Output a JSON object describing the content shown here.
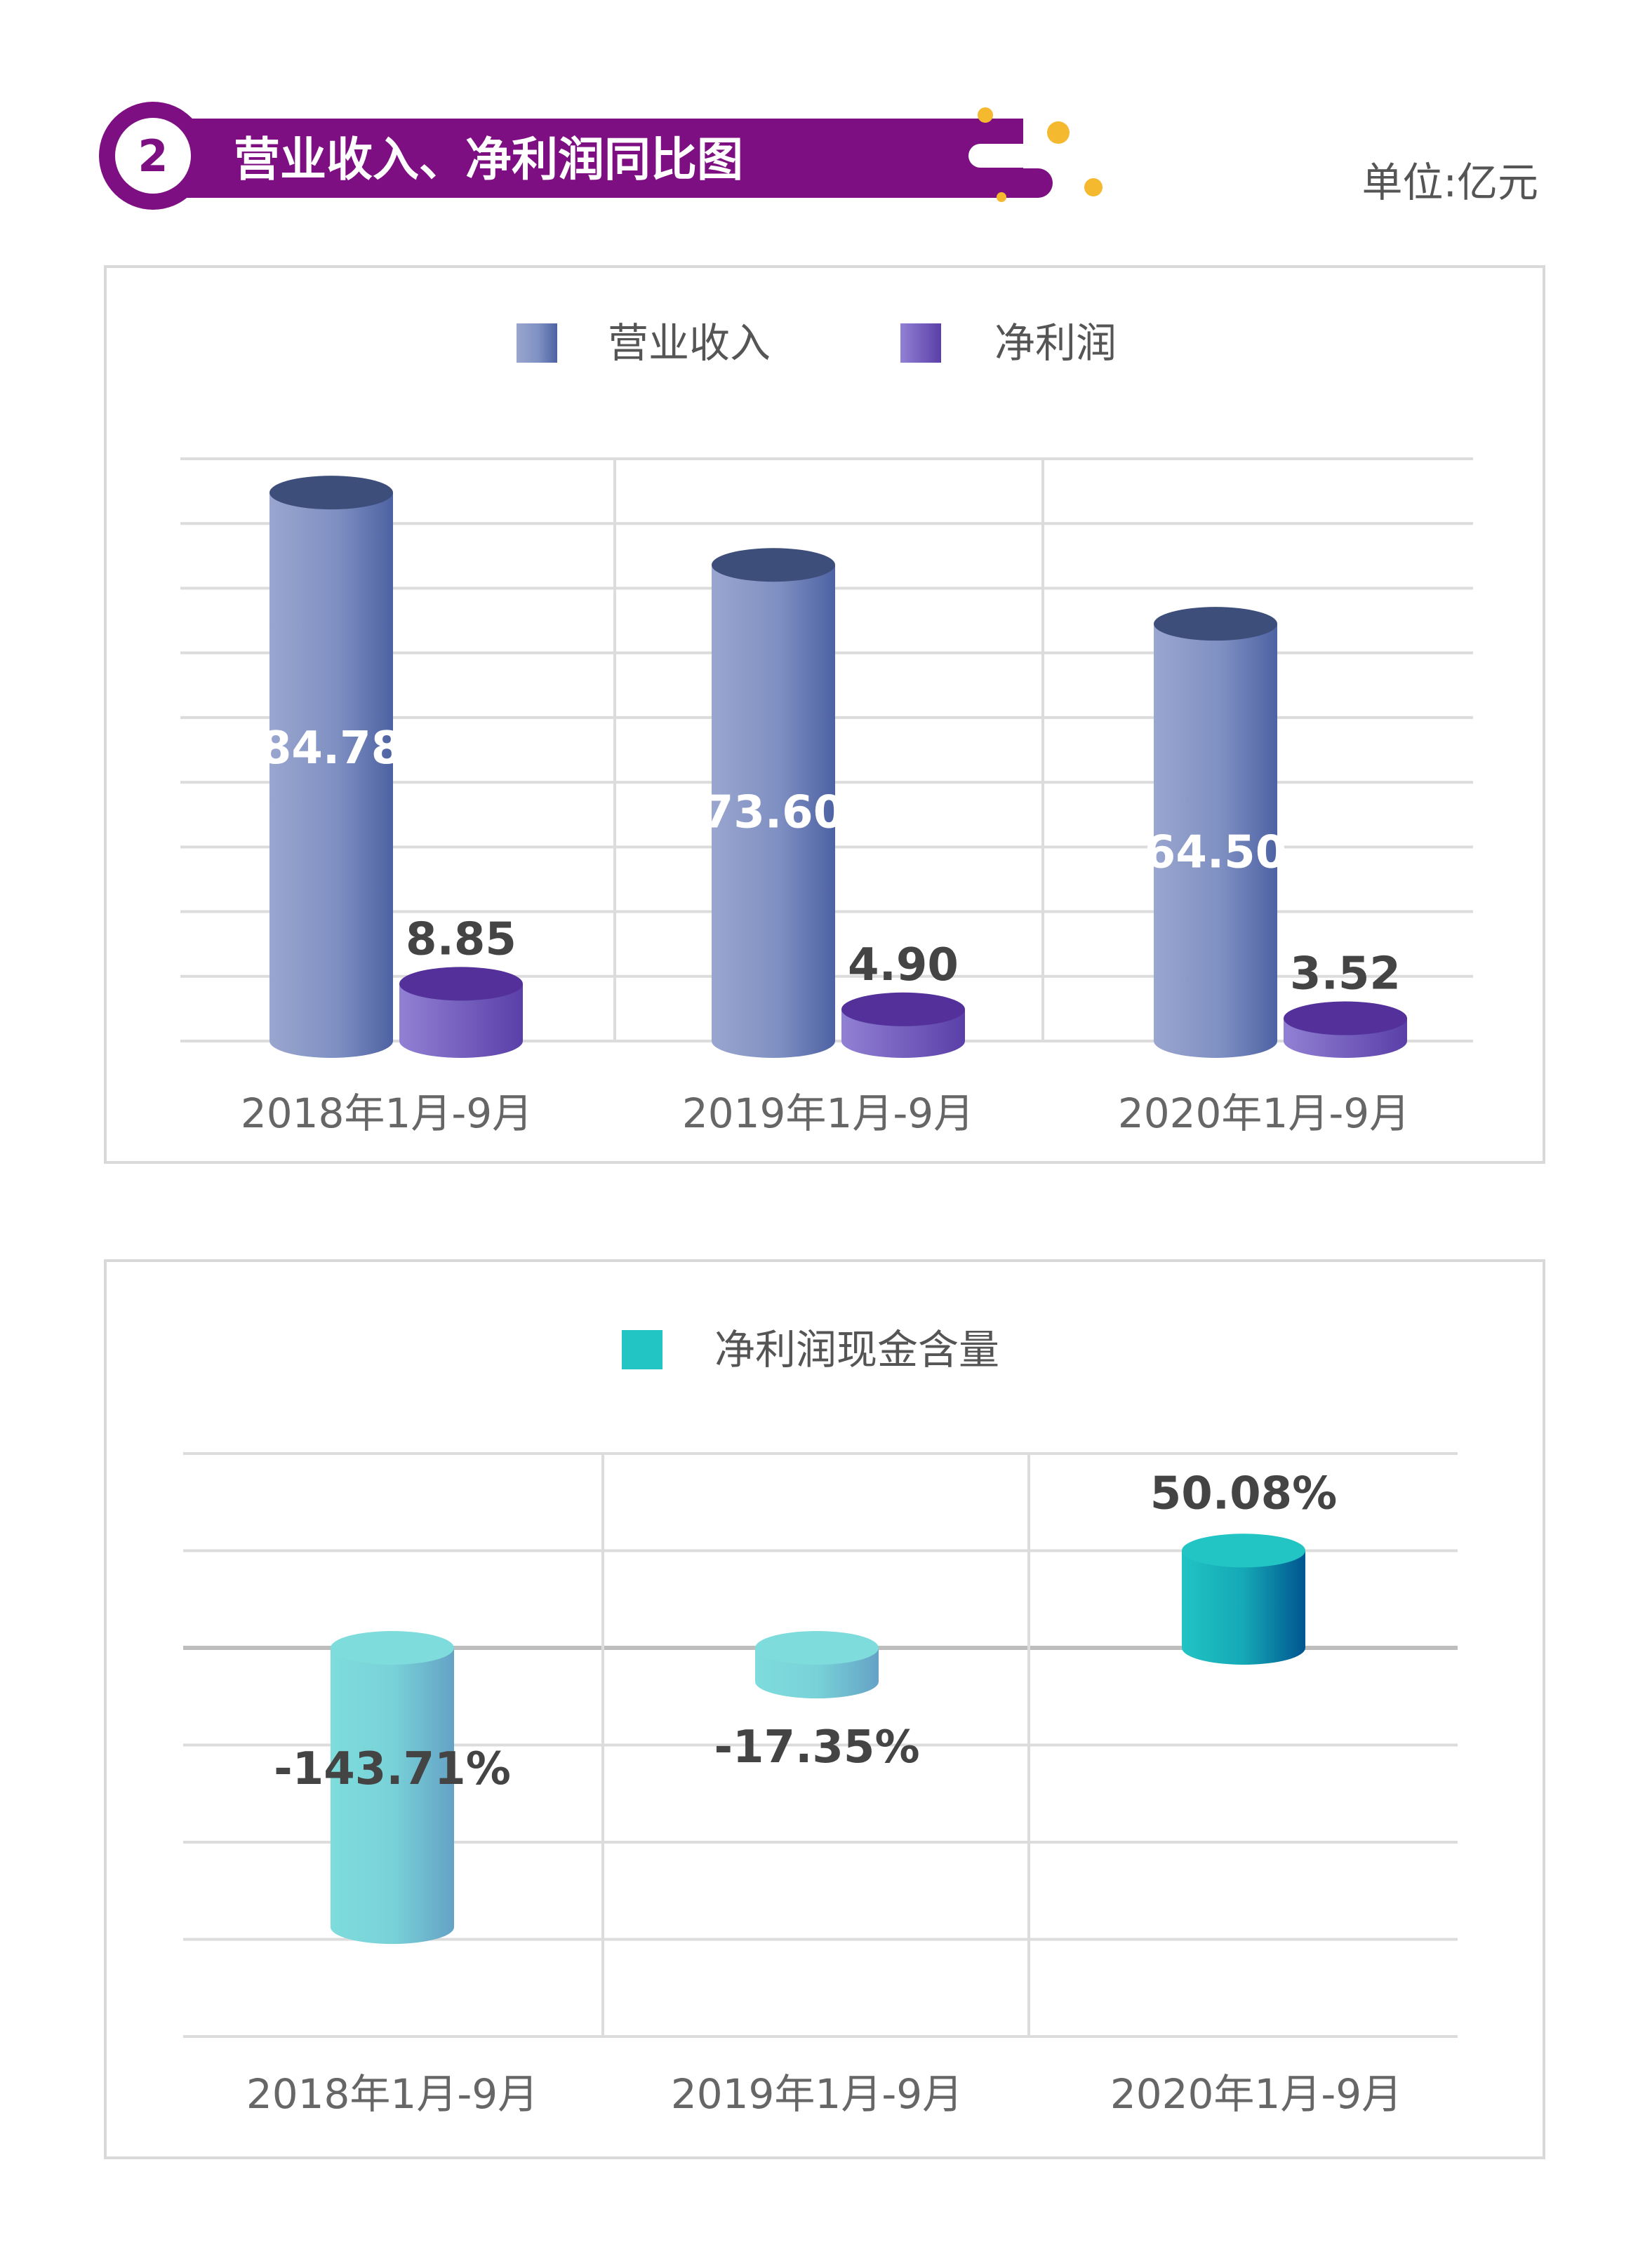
{
  "header": {
    "number": "2",
    "title": "营业收入、净利润同比图",
    "unit": "单位:亿元"
  },
  "colors": {
    "header_purple": "#7e0f82",
    "accent_yellow": "#f5b930",
    "revenue": "#6f80b8",
    "net_profit": "#6a52b8",
    "cash_content": "#7cdbdb",
    "cash_content_positive": "#1aaab8"
  },
  "chart_data": [
    {
      "type": "bar",
      "style": "3d-cylinder",
      "categories": [
        "2018年1月-9月",
        "2019年1月-9月",
        "2020年1月-9月"
      ],
      "series": [
        {
          "name": "营业收入",
          "values": [
            84.78,
            73.6,
            64.5
          ],
          "labels": [
            "84.78",
            "73.60",
            "64.50"
          ]
        },
        {
          "name": "净利润",
          "values": [
            8.85,
            4.9,
            3.52
          ],
          "labels": [
            "8.85",
            "4.90",
            "3.52"
          ]
        }
      ],
      "ylim": [
        0,
        90
      ],
      "ystep": 10,
      "grid": true,
      "legend": "top",
      "yaxis_labels_shown": false
    },
    {
      "type": "bar",
      "style": "3d-cylinder",
      "categories": [
        "2018年1月-9月",
        "2019年1月-9月",
        "2020年1月-9月"
      ],
      "series": [
        {
          "name": "净利润现金含量",
          "values": [
            -143.71,
            -17.35,
            50.08
          ],
          "labels": [
            "-143.71%",
            "-17.35%",
            "50.08%"
          ]
        }
      ],
      "ylim": [
        -200,
        100
      ],
      "ystep": 50,
      "grid": true,
      "legend": "top",
      "yaxis_labels_shown": false
    }
  ]
}
